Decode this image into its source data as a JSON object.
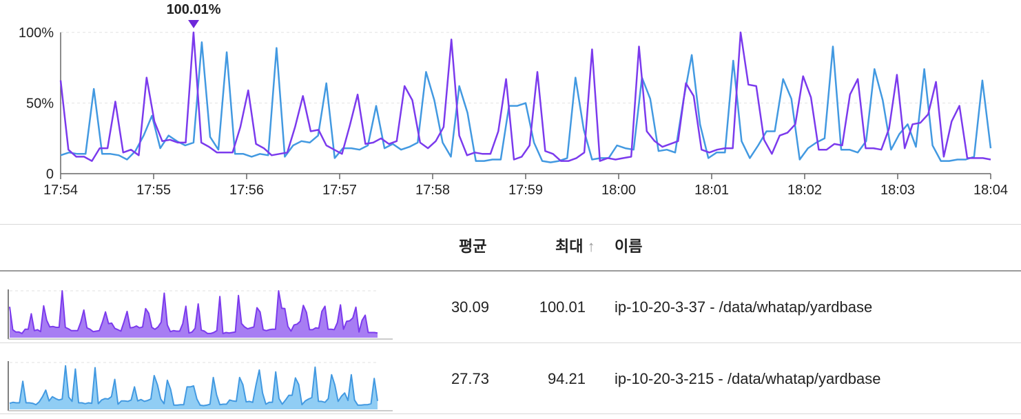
{
  "chart_data": {
    "type": "line",
    "x_ticks": [
      "17:54",
      "17:55",
      "17:56",
      "17:57",
      "17:58",
      "17:59",
      "18:00",
      "18:01",
      "18:02",
      "18:03",
      "18:04"
    ],
    "x_range_minutes": [
      0,
      10
    ],
    "y_ticks": [
      "0",
      "50%",
      "100%"
    ],
    "y_tick_values": [
      0,
      50,
      100
    ],
    "ylim": [
      0,
      100
    ],
    "grid": true,
    "annotation": {
      "label": "100.01%",
      "series": 0,
      "x_minute": 1.43,
      "value": 100.01
    },
    "series": [
      {
        "name": "ip-10-20-3-37 - /data/whatap/yardbase",
        "color": "#7b3aed",
        "fill": "#a77df3",
        "values": [
          66,
          17,
          12,
          12,
          9,
          18,
          18,
          51,
          15,
          17,
          13,
          68,
          37,
          23,
          24,
          22,
          22,
          100,
          22,
          19,
          15,
          15,
          15,
          33,
          59,
          21,
          18,
          13,
          14,
          15,
          33,
          55,
          30,
          31,
          20,
          17,
          14,
          34,
          56,
          21,
          22,
          25,
          21,
          23,
          62,
          52,
          22,
          18,
          23,
          33,
          95,
          27,
          13,
          15,
          14,
          14,
          30,
          67,
          10,
          12,
          20,
          72,
          16,
          14,
          9,
          9,
          11,
          15,
          88,
          9,
          11,
          10,
          11,
          12,
          90,
          30,
          23,
          19,
          21,
          23,
          64,
          55,
          17,
          15,
          17,
          18,
          18,
          100,
          63,
          62,
          24,
          14,
          27,
          29,
          35,
          69,
          54,
          17,
          17,
          21,
          20,
          56,
          67,
          18,
          18,
          17,
          32,
          70,
          18,
          35,
          36,
          42,
          65,
          12,
          37,
          48,
          11,
          11,
          11,
          10
        ]
      },
      {
        "name": "ip-10-20-3-215 - /data/whatap/yardbase",
        "color": "#4299e1",
        "fill": "#90cdf4",
        "values": [
          13,
          15,
          14,
          14,
          60,
          14,
          14,
          13,
          10,
          16,
          27,
          41,
          18,
          27,
          23,
          20,
          22,
          93,
          26,
          17,
          86,
          14,
          14,
          12,
          14,
          13,
          89,
          12,
          20,
          23,
          22,
          27,
          64,
          11,
          18,
          18,
          17,
          20,
          48,
          18,
          21,
          17,
          19,
          22,
          72,
          52,
          22,
          12,
          62,
          43,
          9,
          9,
          10,
          10,
          48,
          48,
          50,
          22,
          9,
          8,
          9,
          11,
          68,
          31,
          10,
          11,
          11,
          20,
          18,
          17,
          68,
          53,
          16,
          17,
          15,
          52,
          84,
          35,
          11,
          15,
          15,
          80,
          23,
          11,
          20,
          30,
          30,
          67,
          53,
          10,
          18,
          22,
          25,
          90,
          17,
          17,
          15,
          23,
          74,
          52,
          17,
          28,
          35,
          19,
          74,
          20,
          9,
          9,
          10,
          10,
          12,
          66,
          18
        ]
      }
    ],
    "table": {
      "columns": {
        "avg": "평균",
        "max": "최대",
        "max_sort": "↑",
        "name": "이름"
      },
      "rows": [
        {
          "avg": "30.09",
          "max": "100.01",
          "name": "ip-10-20-3-37 - /data/whatap/yardbase"
        },
        {
          "avg": "27.73",
          "max": "94.21",
          "name": "ip-10-20-3-215 - /data/whatap/yardbase"
        }
      ]
    }
  }
}
